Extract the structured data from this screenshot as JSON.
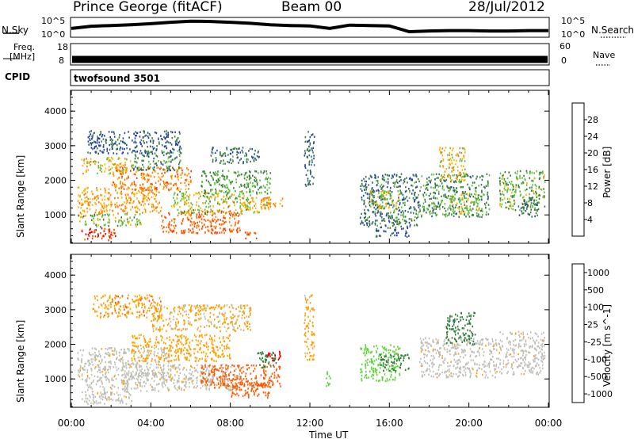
{
  "header": {
    "title": "Prince George (fitACF)",
    "beam": "Beam 00",
    "date": "28/Jul/2012"
  },
  "noise_panel": {
    "left_label": "N.Sky",
    "right_label": "N.Search",
    "left_ticks": [
      "10^5",
      "10^0"
    ],
    "right_ticks": [
      "10^5",
      "10^0"
    ]
  },
  "freq_panel": {
    "left_label": "Freq.",
    "left_unit": "[MHz]",
    "right_label": "Nave",
    "left_ticks": [
      "18",
      "8"
    ],
    "right_ticks": [
      "60",
      "0"
    ]
  },
  "cpid_panel": {
    "label": "CPID",
    "value": "twofsound 3501"
  },
  "colors": {
    "power_scale": [
      "#0b1fe6",
      "#24479c",
      "#3a7a3f",
      "#5bbd3c",
      "#ffb000",
      "#ff7a00",
      "#ff3b00",
      "#e00000"
    ],
    "velocity_scale": [
      "#e00000",
      "#ff5a00",
      "#ffa000",
      "#bebeb6",
      "#bebeb6",
      "#5fd23c",
      "#2e7d3a",
      "#1f4fb0"
    ]
  },
  "chart_data": [
    {
      "type": "heatmap",
      "title": "",
      "xlabel": "Time UT",
      "ylabel": "Slant Range [km]",
      "xticks": [
        "00:00",
        "04:00",
        "08:00",
        "12:00",
        "16:00",
        "20:00",
        "00:00"
      ],
      "xlim_hours": [
        0,
        24
      ],
      "yticks": [
        "1000",
        "2000",
        "3000",
        "4000"
      ],
      "ylim": [
        180,
        4600
      ],
      "colorbar": {
        "label": "Power [dB]",
        "ticks": [
          "4",
          "8",
          "12",
          "16",
          "20",
          "24",
          "28"
        ],
        "range": [
          0,
          32
        ]
      },
      "patches": [
        {
          "t": [
            0.5,
            2.2
          ],
          "r": [
            200,
            600
          ],
          "v": 27
        },
        {
          "t": [
            0.3,
            3.5
          ],
          "r": [
            600,
            1000
          ],
          "v": 14
        },
        {
          "t": [
            0.3,
            4.5
          ],
          "r": [
            1000,
            1800
          ],
          "v": 20
        },
        {
          "t": [
            2.0,
            6.0
          ],
          "r": [
            1700,
            2400
          ],
          "v": 22
        },
        {
          "t": [
            0.5,
            3.0
          ],
          "r": [
            2200,
            2700
          ],
          "v": 18
        },
        {
          "t": [
            3.0,
            5.5
          ],
          "r": [
            2300,
            2900
          ],
          "v": 10
        },
        {
          "t": [
            4.5,
            8.5
          ],
          "r": [
            400,
            1100
          ],
          "v": 24
        },
        {
          "t": [
            5.0,
            9.0
          ],
          "r": [
            1000,
            1700
          ],
          "v": 15
        },
        {
          "t": [
            6.5,
            10.0
          ],
          "r": [
            1600,
            2300
          ],
          "v": 12
        },
        {
          "t": [
            7.0,
            9.5
          ],
          "r": [
            2500,
            3000
          ],
          "v": 9
        },
        {
          "t": [
            8.5,
            10.0
          ],
          "r": [
            1000,
            1500
          ],
          "v": 18
        },
        {
          "t": [
            9.5,
            10.6
          ],
          "r": [
            1200,
            1500
          ],
          "v": 20
        },
        {
          "t": [
            8.7,
            9.3
          ],
          "r": [
            250,
            500
          ],
          "v": 25
        },
        {
          "t": [
            0.8,
            5.5
          ],
          "r": [
            2800,
            3500
          ],
          "v": 7
        },
        {
          "t": [
            11.7,
            12.2
          ],
          "r": [
            1800,
            3500
          ],
          "v": 8
        },
        {
          "t": [
            14.5,
            17.5
          ],
          "r": [
            600,
            2200
          ],
          "v": 9
        },
        {
          "t": [
            15.0,
            16.5
          ],
          "r": [
            1100,
            1700
          ],
          "v": 16
        },
        {
          "t": [
            16.0,
            16.8
          ],
          "r": [
            700,
            1100
          ],
          "v": 12
        },
        {
          "t": [
            17.5,
            21.0
          ],
          "r": [
            900,
            2200
          ],
          "v": 11
        },
        {
          "t": [
            18.5,
            19.8
          ],
          "r": [
            2000,
            3000
          ],
          "v": 18
        },
        {
          "t": [
            19.0,
            20.5
          ],
          "r": [
            1000,
            1600
          ],
          "v": 16
        },
        {
          "t": [
            21.5,
            23.8
          ],
          "r": [
            1100,
            2300
          ],
          "v": 13
        },
        {
          "t": [
            22.5,
            23.5
          ],
          "r": [
            900,
            1500
          ],
          "v": 8
        },
        {
          "t": [
            15.3,
            17.0
          ],
          "r": [
            300,
            600
          ],
          "v": 7
        }
      ]
    },
    {
      "type": "heatmap",
      "title": "",
      "xlabel": "Time UT",
      "ylabel": "Slant Range [km]",
      "xticks": [
        "00:00",
        "04:00",
        "08:00",
        "12:00",
        "16:00",
        "20:00",
        "00:00"
      ],
      "xlim_hours": [
        0,
        24
      ],
      "yticks": [
        "1000",
        "2000",
        "3000",
        "4000"
      ],
      "ylim": [
        180,
        4600
      ],
      "colorbar": {
        "label": "Velocity [m s^-1]",
        "ticks": [
          "-1000",
          "-500",
          "-100",
          "-25",
          "25",
          "100",
          "500",
          "1000"
        ]
      },
      "patches": [
        {
          "t": [
            0.5,
            3.0
          ],
          "r": [
            200,
            900
          ],
          "v": 0
        },
        {
          "t": [
            0.3,
            5.0
          ],
          "r": [
            900,
            1900
          ],
          "v": 0
        },
        {
          "t": [
            2.5,
            8.5
          ],
          "r": [
            600,
            1400
          ],
          "v": 0
        },
        {
          "t": [
            3.0,
            8.0
          ],
          "r": [
            1500,
            2300
          ],
          "v": -60
        },
        {
          "t": [
            4.0,
            9.0
          ],
          "r": [
            2400,
            3200
          ],
          "v": -40
        },
        {
          "t": [
            6.5,
            10.5
          ],
          "r": [
            700,
            1400
          ],
          "v": -300
        },
        {
          "t": [
            9.3,
            10.3
          ],
          "r": [
            1300,
            1800
          ],
          "v": 600
        },
        {
          "t": [
            9.8,
            10.6
          ],
          "r": [
            1500,
            1800
          ],
          "v": -800
        },
        {
          "t": [
            8.0,
            10.0
          ],
          "r": [
            400,
            1000
          ],
          "v": -150
        },
        {
          "t": [
            1.0,
            4.5
          ],
          "r": [
            2800,
            3500
          ],
          "v": -80
        },
        {
          "t": [
            14.5,
            16.5
          ],
          "r": [
            900,
            2000
          ],
          "v": 200
        },
        {
          "t": [
            15.5,
            17.0
          ],
          "r": [
            1200,
            1700
          ],
          "v": 700
        },
        {
          "t": [
            17.5,
            21.5
          ],
          "r": [
            1000,
            2200
          ],
          "v": 0
        },
        {
          "t": [
            18.8,
            20.3
          ],
          "r": [
            2000,
            3000
          ],
          "v": 900
        },
        {
          "t": [
            21.5,
            23.8
          ],
          "r": [
            1100,
            2400
          ],
          "v": 0
        },
        {
          "t": [
            11.7,
            12.2
          ],
          "r": [
            1500,
            3500
          ],
          "v": -50
        },
        {
          "t": [
            12.8,
            13.1
          ],
          "r": [
            700,
            1200
          ],
          "v": 200
        }
      ]
    },
    {
      "type": "line",
      "title": "",
      "name_left": "N.Sky",
      "name_right": "N.Search",
      "x_hours": [
        0,
        1,
        2,
        3,
        4,
        5,
        6,
        7,
        8,
        9,
        10,
        11,
        12,
        13,
        14,
        15,
        16,
        17,
        18,
        19,
        20,
        21,
        22,
        23,
        24
      ],
      "log10_values": [
        2.2,
        2.8,
        3.0,
        3.2,
        3.5,
        3.9,
        4.2,
        4.1,
        3.9,
        3.6,
        3.2,
        3.0,
        2.9,
        2.2,
        3.1,
        3.0,
        2.9,
        1.3,
        1.5,
        1.6,
        1.6,
        1.5,
        1.5,
        1.6,
        1.6
      ]
    },
    {
      "type": "line",
      "title": "",
      "name_left": "Freq.",
      "name_right": "Nave",
      "x_hours": [
        0,
        24
      ],
      "freq_mhz": [
        10.6,
        10.6
      ],
      "freq_ylim": [
        8,
        18
      ]
    }
  ]
}
